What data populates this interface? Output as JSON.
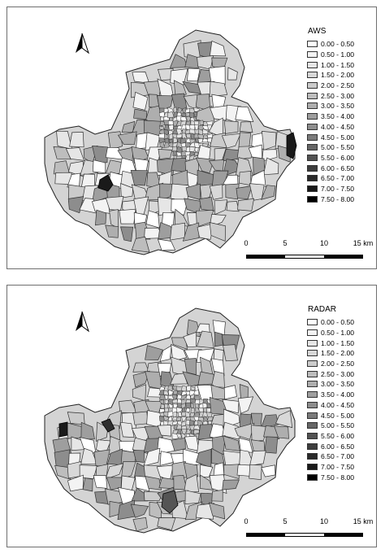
{
  "panels": [
    {
      "id": "aws",
      "legend_title": "AWS",
      "highlights": [
        "east-edge",
        "west-mid"
      ],
      "scale_labels": [
        "0",
        "5",
        "10",
        "15 km"
      ]
    },
    {
      "id": "radar",
      "legend_title": "RADAR",
      "highlights": [
        "west-pair",
        "south-center"
      ],
      "scale_labels": [
        "0",
        "5",
        "10",
        "15 km"
      ]
    }
  ],
  "legend_classes": [
    {
      "label": "0.00 - 0.50",
      "color": "#ffffff"
    },
    {
      "label": "0.50 - 1.00",
      "color": "#f3f3f3"
    },
    {
      "label": "1.00 - 1.50",
      "color": "#e6e6e6"
    },
    {
      "label": "1.50 - 2.00",
      "color": "#d8d8d8"
    },
    {
      "label": "2.00 - 2.50",
      "color": "#cbcbcb"
    },
    {
      "label": "2.50 - 3.00",
      "color": "#bdbdbd"
    },
    {
      "label": "3.00 - 3.50",
      "color": "#aeaeae"
    },
    {
      "label": "3.50 - 4.00",
      "color": "#9e9e9e"
    },
    {
      "label": "4.00 - 4.50",
      "color": "#8d8d8d"
    },
    {
      "label": "4.50 - 5.00",
      "color": "#7a7a7a"
    },
    {
      "label": "5.00 - 5.50",
      "color": "#666666"
    },
    {
      "label": "5.50 - 6.00",
      "color": "#525252"
    },
    {
      "label": "6.00 - 6.50",
      "color": "#3d3d3d"
    },
    {
      "label": "6.50 - 7.00",
      "color": "#2a2a2a"
    },
    {
      "label": "7.00 - 7.50",
      "color": "#181818"
    },
    {
      "label": "7.50 - 8.00",
      "color": "#000000"
    }
  ],
  "north_arrow_icon": "north-arrow-icon"
}
